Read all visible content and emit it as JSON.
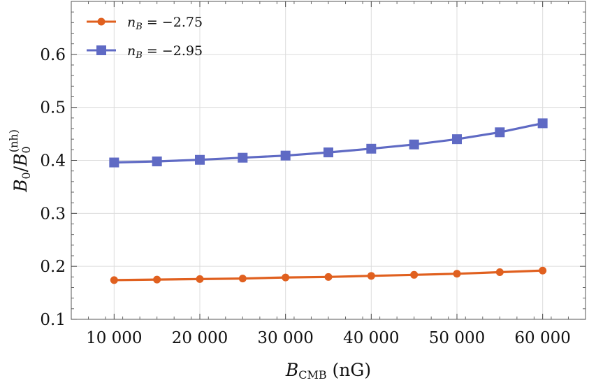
{
  "chart_data": {
    "type": "line",
    "title": "",
    "xlabel": "B_CMB (nG)",
    "xlabel_main": "B",
    "xlabel_sub": "CMB",
    "xlabel_unit": " (nG)",
    "ylabel": "B_0/B_0^(nh)",
    "ylabel_parts": {
      "b1": "B",
      "s1": "0",
      "slash": "/",
      "b2": "B",
      "s2": "0",
      "sup": "(nh)"
    },
    "xlim": [
      5000,
      65000
    ],
    "ylim": [
      0.1,
      0.7
    ],
    "xticks": [
      10000,
      20000,
      30000,
      40000,
      50000,
      60000
    ],
    "xtick_labels": [
      "10 000",
      "20 000",
      "30 000",
      "40 000",
      "50 000",
      "60 000"
    ],
    "yticks": [
      0.1,
      0.2,
      0.3,
      0.4,
      0.5,
      0.6
    ],
    "ytick_labels": [
      "0.1",
      "0.2",
      "0.3",
      "0.4",
      "0.5",
      "0.6"
    ],
    "grid": true,
    "legend_position": "top-left",
    "x": [
      10000,
      15000,
      20000,
      25000,
      30000,
      35000,
      40000,
      45000,
      50000,
      55000,
      60000
    ],
    "series": [
      {
        "name": "n_B = -2.75",
        "legend_var": "n",
        "legend_sub": "B",
        "legend_value": " = −2.75",
        "color": "#e0601f",
        "marker": "circle",
        "values": [
          0.174,
          0.175,
          0.176,
          0.177,
          0.179,
          0.18,
          0.182,
          0.184,
          0.186,
          0.189,
          0.192
        ]
      },
      {
        "name": "n_B = -2.95",
        "legend_var": "n",
        "legend_sub": "B",
        "legend_value": " = −2.95",
        "color": "#5f6ac4",
        "marker": "square",
        "values": [
          0.396,
          0.398,
          0.401,
          0.405,
          0.409,
          0.415,
          0.422,
          0.43,
          0.44,
          0.453,
          0.47
        ]
      }
    ]
  }
}
